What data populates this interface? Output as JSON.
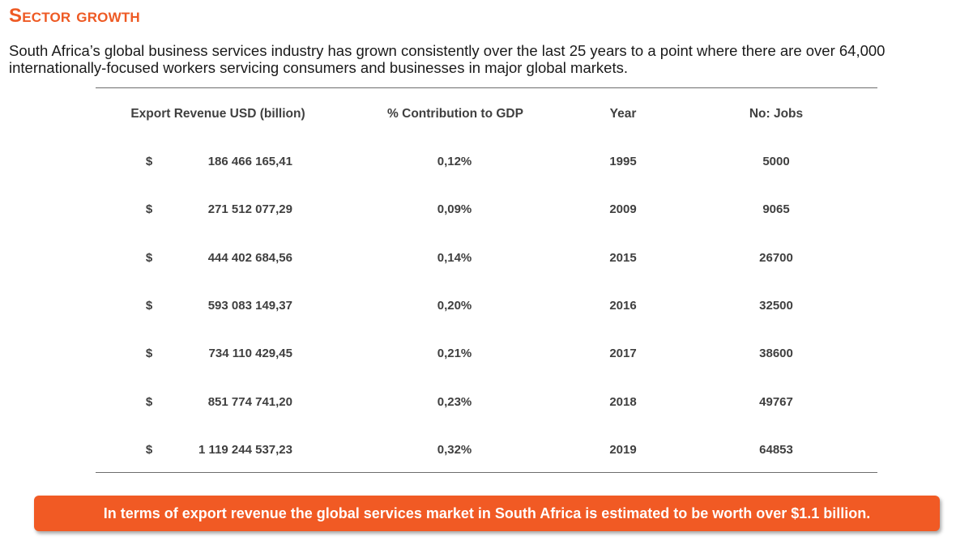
{
  "title": "Sector growth",
  "intro": "South Africa’s global business services industry has grown consistently over the last 25 years to a point where there are over 64,000 internationally-focused workers servicing consumers and businesses in major global markets.",
  "table": {
    "headers": {
      "revenue": "Export Revenue USD (billion)",
      "gdp": "% Contribution to GDP",
      "year": "Year",
      "jobs": "No: Jobs"
    },
    "rows": [
      {
        "currency": "$",
        "revenue": "186 466 165,41",
        "gdp": "0,12%",
        "year": "1995",
        "jobs": "5000"
      },
      {
        "currency": "$",
        "revenue": "271 512 077,29",
        "gdp": "0,09%",
        "year": "2009",
        "jobs": "9065"
      },
      {
        "currency": "$",
        "revenue": "444 402 684,56",
        "gdp": "0,14%",
        "year": "2015",
        "jobs": "26700"
      },
      {
        "currency": "$",
        "revenue": "593 083 149,37",
        "gdp": "0,20%",
        "year": "2016",
        "jobs": "32500"
      },
      {
        "currency": "$",
        "revenue": "734 110 429,45",
        "gdp": "0,21%",
        "year": "2017",
        "jobs": "38600"
      },
      {
        "currency": "$",
        "revenue": "851 774 741,20",
        "gdp": "0,23%",
        "year": "2018",
        "jobs": "49767"
      },
      {
        "currency": "$",
        "revenue": "1 119 244 537,23",
        "gdp": "0,32%",
        "year": "2019",
        "jobs": "64853"
      }
    ]
  },
  "callout": "In terms of export revenue the global services market in South Africa is estimated to be worth over $1.1 billion.",
  "colors": {
    "accent": "#f15a24",
    "title": "#ee5a24",
    "table_text": "#3f3f3f",
    "rule": "#6d6d6d"
  }
}
